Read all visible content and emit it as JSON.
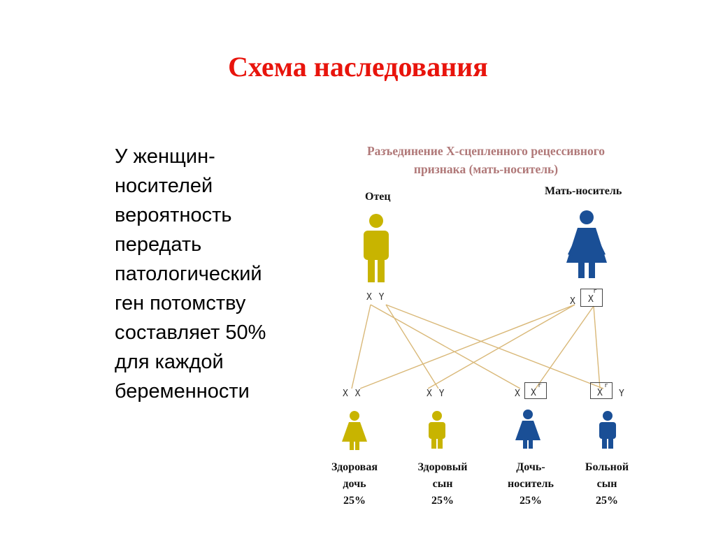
{
  "title": "Схема наследования",
  "bullet_lines": [
    "У женщин-",
    "носителей",
    "вероятность",
    "передать",
    "патологический",
    "ген потомству",
    "составляет 50%",
    "для каждой",
    "беременности"
  ],
  "diagram": {
    "title_line1": "Разъединение X-сцепленного рецессивного",
    "title_line2": "признака (мать-носитель)",
    "father_label": "Отец",
    "mother_label": "Мать-носитель",
    "father_genotype": "X Y",
    "mother_genotype_x": "X",
    "mother_genotype_xr": "X",
    "gene_marker": "r",
    "children": [
      {
        "genotype": "X X",
        "name_line1": "Здоровая",
        "name_line2": "дочь",
        "percent": "25%"
      },
      {
        "genotype": "X Y",
        "name_line1": "Здоровый",
        "name_line2": "сын",
        "percent": "25%"
      },
      {
        "genotype_left": "X",
        "genotype_boxed": "X",
        "name_line1": "Дочь-",
        "name_line2": "носитель",
        "percent": "25%"
      },
      {
        "genotype_boxed": "X",
        "genotype_right": "Y",
        "name_line1": "Больной",
        "name_line2": "сын",
        "percent": "25%"
      }
    ],
    "colors": {
      "healthy": "#c8b400",
      "affected": "#1a4f96",
      "lines": "#d9b878",
      "title": "#e8140c"
    }
  }
}
